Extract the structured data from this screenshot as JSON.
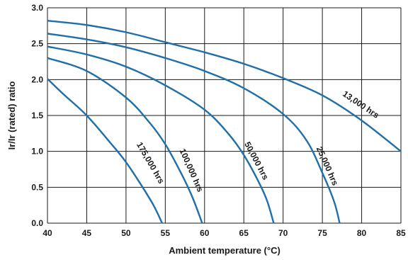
{
  "chart_data": {
    "type": "line",
    "title": "",
    "xlabel": "Ambient temperature (°C)",
    "ylabel": "Ir/Ir (rated) ratio",
    "xlim": [
      40,
      85
    ],
    "ylim": [
      0,
      3.0
    ],
    "x_ticks": [
      "40",
      "45",
      "50",
      "55",
      "60",
      "65",
      "70",
      "75",
      "80",
      "85"
    ],
    "y_ticks": [
      "0.0",
      "0.5",
      "1.0",
      "1.5",
      "2.0",
      "2.5",
      "3.0"
    ],
    "grid": true,
    "legend": "none",
    "color": "#1f6fa8",
    "series": [
      {
        "name": "13,000 hrs",
        "points": [
          [
            40,
            2.82
          ],
          [
            45,
            2.76
          ],
          [
            50,
            2.66
          ],
          [
            55,
            2.52
          ],
          [
            60,
            2.38
          ],
          [
            65,
            2.22
          ],
          [
            70,
            2.02
          ],
          [
            75,
            1.78
          ],
          [
            80,
            1.43
          ],
          [
            85,
            1.0
          ]
        ]
      },
      {
        "name": "25,000 hrs",
        "points": [
          [
            40,
            2.64
          ],
          [
            45,
            2.56
          ],
          [
            50,
            2.45
          ],
          [
            55,
            2.3
          ],
          [
            60,
            2.12
          ],
          [
            65,
            1.88
          ],
          [
            70,
            1.52
          ],
          [
            73,
            1.15
          ],
          [
            75,
            0.7
          ],
          [
            76.5,
            0.3
          ],
          [
            77.2,
            0.0
          ]
        ]
      },
      {
        "name": "50,000 hrs",
        "points": [
          [
            40,
            2.46
          ],
          [
            45,
            2.35
          ],
          [
            50,
            2.18
          ],
          [
            55,
            1.92
          ],
          [
            60,
            1.58
          ],
          [
            63,
            1.25
          ],
          [
            65,
            0.95
          ],
          [
            67,
            0.55
          ],
          [
            68,
            0.3
          ],
          [
            68.8,
            0.0
          ]
        ]
      },
      {
        "name": "100,000 hrs",
        "points": [
          [
            40,
            2.3
          ],
          [
            45,
            2.12
          ],
          [
            50,
            1.75
          ],
          [
            53,
            1.4
          ],
          [
            55,
            1.1
          ],
          [
            57,
            0.7
          ],
          [
            58.5,
            0.35
          ],
          [
            59.7,
            0.0
          ]
        ]
      },
      {
        "name": "175,000 hrs",
        "points": [
          [
            40,
            2.01
          ],
          [
            42,
            1.8
          ],
          [
            45,
            1.5
          ],
          [
            48,
            1.12
          ],
          [
            50,
            0.85
          ],
          [
            52,
            0.52
          ],
          [
            53.5,
            0.25
          ],
          [
            54.6,
            0.0
          ]
        ]
      }
    ]
  }
}
